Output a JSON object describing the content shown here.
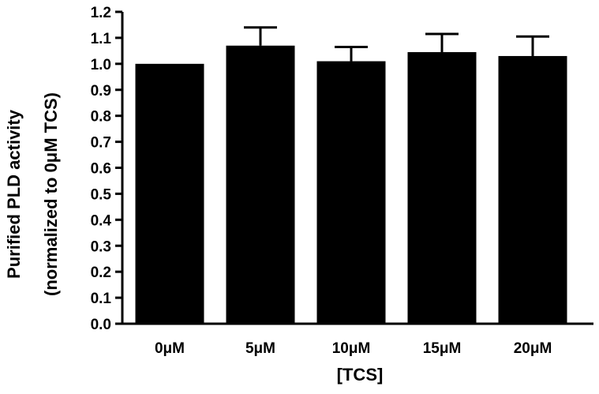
{
  "chart_data": {
    "type": "bar",
    "categories": [
      "0μM",
      "5μM",
      "10μM",
      "15μM",
      "20μM"
    ],
    "values": [
      1.0,
      1.07,
      1.01,
      1.045,
      1.03
    ],
    "error_upper": [
      0.0,
      0.07,
      0.055,
      0.07,
      0.075
    ],
    "xlabel": "[TCS]",
    "ylabel": [
      "Purified PLD activity",
      "(normalized to 0μM TCS)"
    ],
    "ylim": [
      0.0,
      1.2
    ],
    "yticks": [
      "0.0",
      "0.1",
      "0.2",
      "0.3",
      "0.4",
      "0.5",
      "0.6",
      "0.7",
      "0.8",
      "0.9",
      "1.0",
      "1.1",
      "1.2"
    ],
    "grid": false,
    "bar_color": "#000000"
  }
}
